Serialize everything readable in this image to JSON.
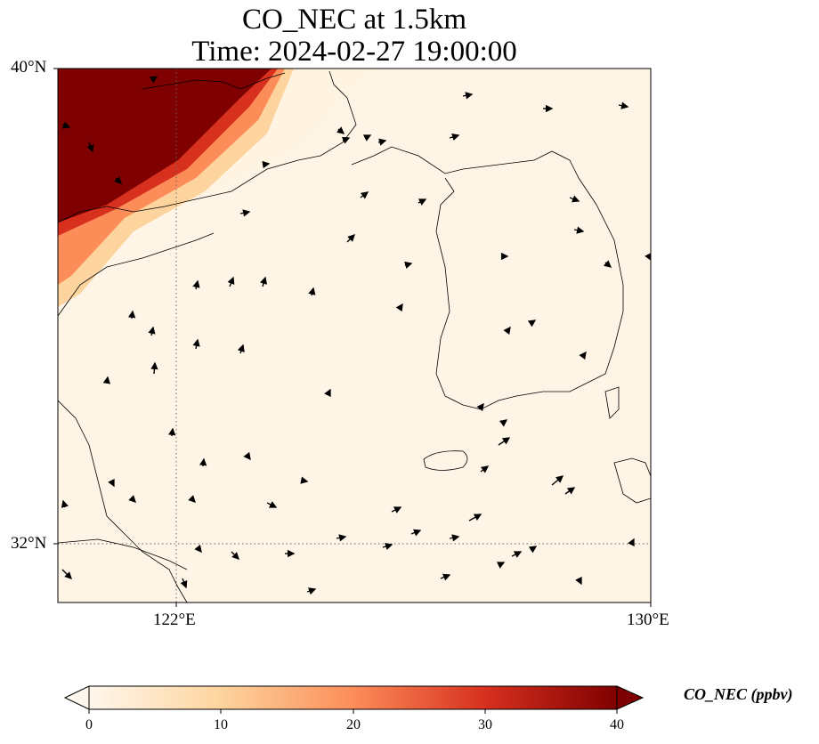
{
  "title": {
    "line1": "CO_NEC at 1.5km",
    "line2": "Time: 2024-02-27 19:00:00"
  },
  "axes": {
    "lat_labels": [
      "40°N",
      "32°N"
    ],
    "lon_labels": [
      "122°E",
      "130°E"
    ],
    "lon_range": [
      120,
      130
    ],
    "lat_range": [
      31,
      40
    ],
    "gridlines": "dotted"
  },
  "colorbar": {
    "label": "CO_NEC (ppbv)",
    "ticks": [
      "0",
      "10",
      "20",
      "30",
      "40"
    ],
    "range": [
      0,
      40
    ],
    "colormap": "OrRd",
    "extend": "both"
  },
  "field": {
    "variable": "CO_NEC",
    "level": "1.5km",
    "high_value_region": "northwest corner (Bohai / Liaodong)",
    "high_value_ppbv": 40,
    "background_ppbv": 1
  },
  "colors": {
    "low": "#fff7ec",
    "mid": "#fdbb84",
    "high": "#7f0000",
    "coastline": "#000000"
  }
}
